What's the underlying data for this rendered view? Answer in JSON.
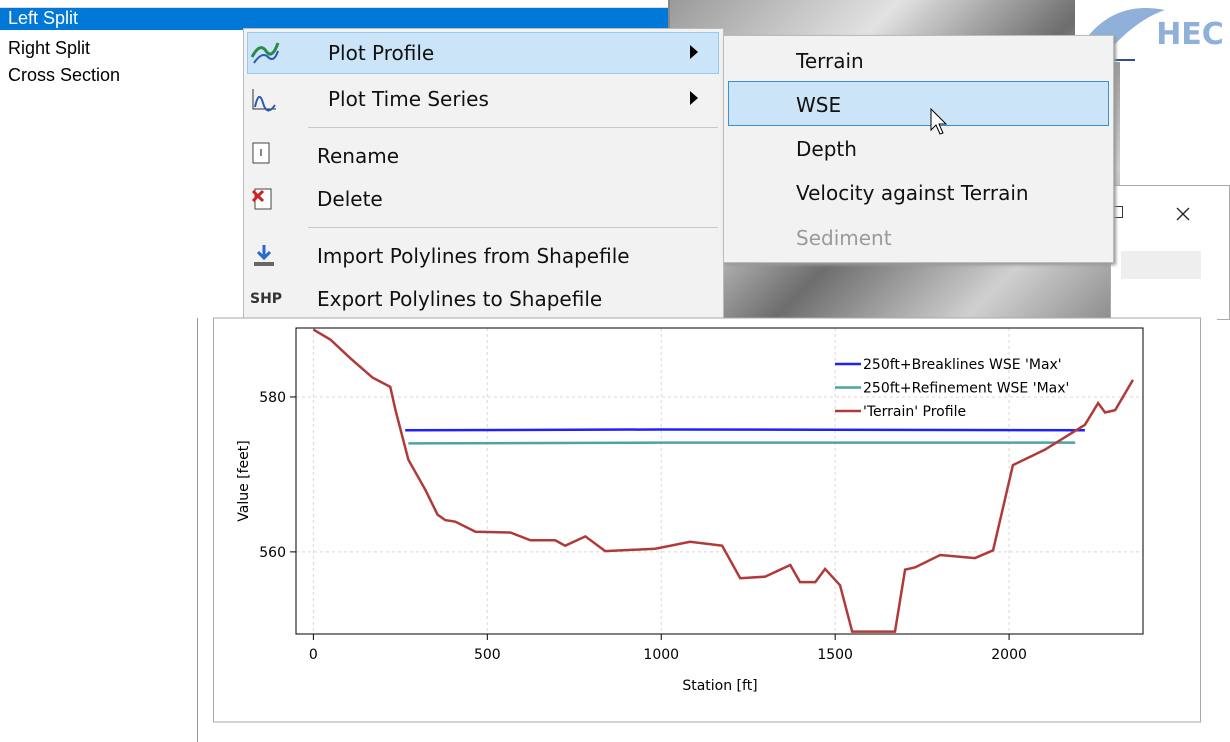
{
  "list": {
    "items": [
      "Left Split",
      "Right Split",
      "Cross Section"
    ]
  },
  "menu": {
    "items": [
      {
        "label": "Plot Profile"
      },
      {
        "label": "Plot Time Series"
      },
      {
        "label": "Rename"
      },
      {
        "label": "Delete"
      },
      {
        "label": "Import Polylines from Shapefile"
      },
      {
        "label": "Export Polylines to Shapefile",
        "icon_text": "SHP"
      }
    ]
  },
  "submenu": {
    "items": [
      "Terrain",
      "WSE",
      "Depth",
      "Velocity against Terrain",
      "Sediment"
    ]
  },
  "logo": {
    "text": "HEC"
  },
  "chart_data": {
    "type": "line",
    "xlabel": "Station [ft]",
    "ylabel": "Value [feet]",
    "xlim": [
      -50,
      2385
    ],
    "ylim": [
      549.4,
      588.9
    ],
    "xticks": [
      0,
      500,
      1000,
      1500,
      2000
    ],
    "yticks": [
      560,
      580
    ],
    "grid": true,
    "legend": "upper right",
    "series": [
      {
        "name": "250ft+Breaklines WSE 'Max'",
        "color": "#1f1fff",
        "x": [
          264,
          1000,
          2218
        ],
        "values": [
          575.7,
          575.8,
          575.7
        ]
      },
      {
        "name": "250ft+Refinement WSE 'Max'",
        "color": "#4fa3a3",
        "x": [
          273,
          1000,
          2190
        ],
        "values": [
          574.0,
          574.1,
          574.1
        ]
      },
      {
        "name": "'Terrain' Profile",
        "color": "#b03a3a",
        "x": [
          0,
          49,
          106,
          170,
          221,
          236,
          273,
          322,
          357,
          379,
          408,
          466,
          566,
          624,
          695,
          724,
          782,
          839,
          983,
          1083,
          1175,
          1227,
          1299,
          1371,
          1399,
          1443,
          1471,
          1514,
          1549,
          1672,
          1701,
          1730,
          1802,
          1902,
          1954,
          2011,
          2103,
          2218,
          2256,
          2276,
          2305,
          2356
        ],
        "values": [
          588.7,
          587.4,
          585,
          582.5,
          581.3,
          578.3,
          571.9,
          568,
          564.8,
          564.1,
          563.9,
          562.6,
          562.5,
          561.5,
          561.5,
          560.8,
          562,
          560.1,
          560.4,
          561.3,
          560.8,
          556.6,
          556.8,
          558.3,
          556.1,
          556.1,
          557.8,
          555.7,
          549.7,
          549.7,
          557.7,
          558,
          559.6,
          559.2,
          560.2,
          571.2,
          573.2,
          576.4,
          579.2,
          578,
          578.3,
          582.2
        ]
      }
    ]
  }
}
